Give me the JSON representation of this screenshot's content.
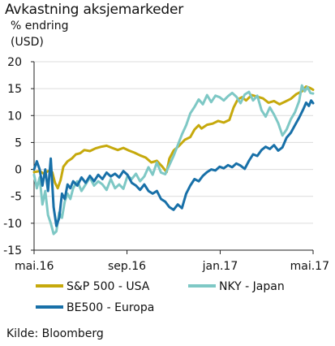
{
  "header": {
    "title": "Avkastning aksjemarkeder",
    "unit_line1": "% endring",
    "unit_line2": "(USD)"
  },
  "source": "Kilde: Bloomberg",
  "chart_data": {
    "type": "line",
    "title": "Avkastning aksjemarkeder",
    "ylabel": "% endring (USD)",
    "xlabel": "",
    "ylim": [
      -15,
      20
    ],
    "yticks": [
      20,
      15,
      10,
      5,
      0,
      -5,
      -10,
      -15
    ],
    "xlim": [
      0,
      1
    ],
    "xticks": [
      {
        "label": "mai.16",
        "x": 0.0
      },
      {
        "label": "sep.16",
        "x": 0.333
      },
      {
        "label": "jan.17",
        "x": 0.667
      },
      {
        "label": "mai.17",
        "x": 1.0
      }
    ],
    "grid": true,
    "legend_position": "bottom",
    "series": [
      {
        "name": "S&P 500 - USA",
        "color": "#c6a90c",
        "points": [
          [
            0.0,
            -0.5
          ],
          [
            0.02,
            -0.3
          ],
          [
            0.035,
            -0.8
          ],
          [
            0.05,
            -0.3
          ],
          [
            0.065,
            -0.5
          ],
          [
            0.075,
            -2.5
          ],
          [
            0.085,
            -3.5
          ],
          [
            0.095,
            -2
          ],
          [
            0.105,
            0.5
          ],
          [
            0.12,
            1.5
          ],
          [
            0.135,
            2
          ],
          [
            0.15,
            2.8
          ],
          [
            0.165,
            3
          ],
          [
            0.18,
            3.6
          ],
          [
            0.2,
            3.4
          ],
          [
            0.22,
            3.9
          ],
          [
            0.24,
            4.2
          ],
          [
            0.26,
            4.4
          ],
          [
            0.28,
            4
          ],
          [
            0.3,
            3.6
          ],
          [
            0.32,
            4
          ],
          [
            0.34,
            3.5
          ],
          [
            0.36,
            3.1
          ],
          [
            0.38,
            2.6
          ],
          [
            0.4,
            2.2
          ],
          [
            0.42,
            1.3
          ],
          [
            0.44,
            1.6
          ],
          [
            0.46,
            0.5
          ],
          [
            0.475,
            -0.5
          ],
          [
            0.485,
            2
          ],
          [
            0.5,
            3.5
          ],
          [
            0.52,
            4.4
          ],
          [
            0.54,
            5.5
          ],
          [
            0.56,
            6
          ],
          [
            0.575,
            7.4
          ],
          [
            0.59,
            8.2
          ],
          [
            0.6,
            7.6
          ],
          [
            0.62,
            8.3
          ],
          [
            0.64,
            8.5
          ],
          [
            0.66,
            9
          ],
          [
            0.68,
            8.7
          ],
          [
            0.7,
            9.2
          ],
          [
            0.715,
            11.5
          ],
          [
            0.73,
            13
          ],
          [
            0.745,
            13.4
          ],
          [
            0.76,
            12.8
          ],
          [
            0.78,
            13.8
          ],
          [
            0.8,
            13.5
          ],
          [
            0.82,
            13.2
          ],
          [
            0.84,
            12.4
          ],
          [
            0.86,
            12.7
          ],
          [
            0.88,
            12.1
          ],
          [
            0.9,
            12.6
          ],
          [
            0.92,
            13.1
          ],
          [
            0.94,
            14
          ],
          [
            0.96,
            14.5
          ],
          [
            0.975,
            15.4
          ],
          [
            0.99,
            15.1
          ],
          [
            1.0,
            14.8
          ]
        ]
      },
      {
        "name": "NKY - Japan",
        "color": "#7ec8c5",
        "points": [
          [
            0.0,
            -1
          ],
          [
            0.01,
            -3.5
          ],
          [
            0.02,
            -1.5
          ],
          [
            0.03,
            -6.5
          ],
          [
            0.04,
            -4
          ],
          [
            0.05,
            -8.5
          ],
          [
            0.06,
            -10
          ],
          [
            0.07,
            -12
          ],
          [
            0.08,
            -11.5
          ],
          [
            0.09,
            -8
          ],
          [
            0.1,
            -9
          ],
          [
            0.11,
            -6
          ],
          [
            0.12,
            -4.5
          ],
          [
            0.13,
            -5.5
          ],
          [
            0.14,
            -3.5
          ],
          [
            0.155,
            -2.2
          ],
          [
            0.17,
            -4
          ],
          [
            0.185,
            -2.8
          ],
          [
            0.2,
            -1.5
          ],
          [
            0.215,
            -3
          ],
          [
            0.23,
            -2.2
          ],
          [
            0.245,
            -2.8
          ],
          [
            0.26,
            -3.8
          ],
          [
            0.275,
            -1.8
          ],
          [
            0.29,
            -3.5
          ],
          [
            0.305,
            -2.8
          ],
          [
            0.32,
            -3.6
          ],
          [
            0.335,
            -1.2
          ],
          [
            0.35,
            -1.8
          ],
          [
            0.365,
            -0.8
          ],
          [
            0.38,
            -2.2
          ],
          [
            0.395,
            -1.3
          ],
          [
            0.41,
            0.4
          ],
          [
            0.425,
            -1
          ],
          [
            0.44,
            1.3
          ],
          [
            0.455,
            -0.6
          ],
          [
            0.47,
            -0.9
          ],
          [
            0.485,
            0.8
          ],
          [
            0.5,
            2.5
          ],
          [
            0.515,
            4.5
          ],
          [
            0.53,
            6.5
          ],
          [
            0.545,
            8.2
          ],
          [
            0.56,
            10.4
          ],
          [
            0.575,
            11.6
          ],
          [
            0.59,
            13
          ],
          [
            0.605,
            12.1
          ],
          [
            0.62,
            13.8
          ],
          [
            0.635,
            12.5
          ],
          [
            0.65,
            13.7
          ],
          [
            0.665,
            13.4
          ],
          [
            0.68,
            12.8
          ],
          [
            0.695,
            13.6
          ],
          [
            0.71,
            14.2
          ],
          [
            0.725,
            13.5
          ],
          [
            0.74,
            12.3
          ],
          [
            0.755,
            13.9
          ],
          [
            0.77,
            14.4
          ],
          [
            0.785,
            12.8
          ],
          [
            0.8,
            13.7
          ],
          [
            0.815,
            11
          ],
          [
            0.83,
            9.8
          ],
          [
            0.845,
            11.5
          ],
          [
            0.86,
            10.2
          ],
          [
            0.875,
            8.6
          ],
          [
            0.89,
            6.3
          ],
          [
            0.905,
            7.4
          ],
          [
            0.92,
            9.3
          ],
          [
            0.935,
            10.6
          ],
          [
            0.95,
            12.7
          ],
          [
            0.96,
            15.6
          ],
          [
            0.97,
            14.5
          ],
          [
            0.98,
            15.3
          ],
          [
            0.99,
            14.2
          ],
          [
            1.0,
            14.1
          ]
        ]
      },
      {
        "name": "BE500 - Europa",
        "color": "#1870a8",
        "points": [
          [
            0.0,
            0
          ],
          [
            0.01,
            1.5
          ],
          [
            0.02,
            0
          ],
          [
            0.03,
            -3
          ],
          [
            0.04,
            0
          ],
          [
            0.05,
            -4
          ],
          [
            0.06,
            2
          ],
          [
            0.07,
            -7
          ],
          [
            0.08,
            -10.5
          ],
          [
            0.09,
            -9
          ],
          [
            0.1,
            -4.5
          ],
          [
            0.11,
            -5.5
          ],
          [
            0.12,
            -2.8
          ],
          [
            0.13,
            -3.5
          ],
          [
            0.14,
            -2.2
          ],
          [
            0.155,
            -3
          ],
          [
            0.17,
            -1.5
          ],
          [
            0.185,
            -2.5
          ],
          [
            0.2,
            -1.2
          ],
          [
            0.215,
            -2.2
          ],
          [
            0.23,
            -1
          ],
          [
            0.245,
            -1.8
          ],
          [
            0.26,
            -0.6
          ],
          [
            0.275,
            -1.3
          ],
          [
            0.29,
            -0.8
          ],
          [
            0.305,
            -1.5
          ],
          [
            0.32,
            -0.3
          ],
          [
            0.335,
            -1
          ],
          [
            0.35,
            -2.5
          ],
          [
            0.365,
            -3
          ],
          [
            0.38,
            -3.8
          ],
          [
            0.395,
            -2.8
          ],
          [
            0.41,
            -4
          ],
          [
            0.425,
            -4.5
          ],
          [
            0.44,
            -4
          ],
          [
            0.455,
            -5.5
          ],
          [
            0.47,
            -6
          ],
          [
            0.485,
            -7
          ],
          [
            0.5,
            -7.5
          ],
          [
            0.515,
            -6.5
          ],
          [
            0.53,
            -7.2
          ],
          [
            0.545,
            -4.5
          ],
          [
            0.56,
            -3
          ],
          [
            0.575,
            -1.8
          ],
          [
            0.59,
            -2.2
          ],
          [
            0.605,
            -1.2
          ],
          [
            0.62,
            -0.5
          ],
          [
            0.635,
            0
          ],
          [
            0.65,
            -0.2
          ],
          [
            0.665,
            0.5
          ],
          [
            0.68,
            0.2
          ],
          [
            0.695,
            0.8
          ],
          [
            0.71,
            0.4
          ],
          [
            0.725,
            1.1
          ],
          [
            0.74,
            0.7
          ],
          [
            0.755,
            0.1
          ],
          [
            0.77,
            1.6
          ],
          [
            0.785,
            2.8
          ],
          [
            0.8,
            2.5
          ],
          [
            0.815,
            3.6
          ],
          [
            0.83,
            4.2
          ],
          [
            0.845,
            3.8
          ],
          [
            0.86,
            4.5
          ],
          [
            0.875,
            3.5
          ],
          [
            0.89,
            4.1
          ],
          [
            0.905,
            5.9
          ],
          [
            0.92,
            6.8
          ],
          [
            0.935,
            8.2
          ],
          [
            0.95,
            9.6
          ],
          [
            0.965,
            11.2
          ],
          [
            0.975,
            12.4
          ],
          [
            0.985,
            11.8
          ],
          [
            0.993,
            12.8
          ],
          [
            1.0,
            12.3
          ]
        ]
      }
    ]
  }
}
